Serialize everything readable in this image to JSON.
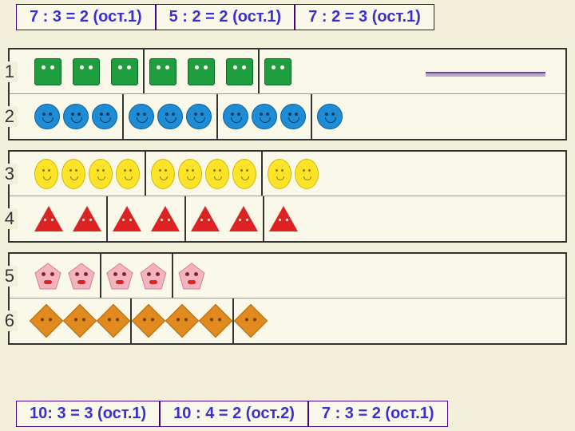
{
  "top_equations": [
    "7 : 3 = 2 (ост.1)",
    "5 : 2 = 2 (ост.1)",
    "7 : 2 = 3 (ост.1)"
  ],
  "bottom_equations": [
    "10: 3 = 3 (ост.1)",
    "10 : 4 = 2 (ост.2)",
    "7 : 3 = 2 (ост.1)"
  ],
  "blocks": [
    {
      "rows": [
        {
          "num": "1",
          "shape": "sq",
          "groups": [
            3,
            3,
            1
          ],
          "gap": 14,
          "underline": true
        },
        {
          "num": "2",
          "shape": "cir",
          "groups": [
            3,
            3,
            3,
            1
          ],
          "gap": 4
        }
      ]
    },
    {
      "rows": [
        {
          "num": "3",
          "shape": "ov",
          "groups": [
            4,
            4,
            2
          ],
          "gap": 4
        },
        {
          "num": "4",
          "shape": "tri",
          "groups": [
            2,
            2,
            2,
            1
          ],
          "gap": 12
        }
      ]
    },
    {
      "rows": [
        {
          "num": "5",
          "shape": "pen",
          "groups": [
            2,
            2,
            1
          ],
          "gap": 8
        },
        {
          "num": "6",
          "shape": "dia",
          "groups": [
            3,
            3,
            1
          ],
          "gap": 12
        }
      ]
    }
  ],
  "colors": {
    "background": "#f2efdb",
    "panel": "#faf8e8",
    "eq_border": "#4b0082",
    "eq_text": "#3b2fcf",
    "green": "#1f9e3f",
    "blue": "#1f8dd6",
    "yellow": "#fde428",
    "red": "#d22",
    "pink": "#f5b3c0",
    "orange": "#e08a1f"
  }
}
